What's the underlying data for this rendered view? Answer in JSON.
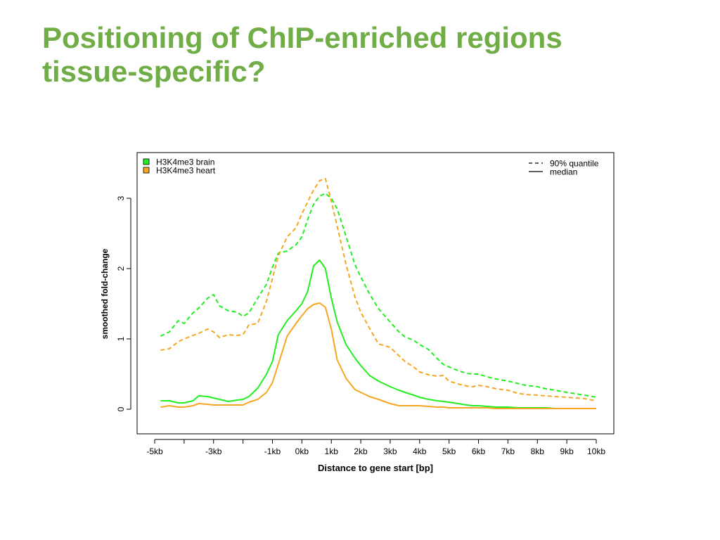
{
  "slide": {
    "title_line1": "Positioning of ChIP-enriched regions",
    "title_line2": "tissue-specific?"
  },
  "chart_data": {
    "type": "line",
    "title": "",
    "xlabel": "Distance to gene start [bp]",
    "ylabel": "smoothed fold-change",
    "xlim": [
      -5,
      10
    ],
    "ylim": [
      -0.35,
      3.65
    ],
    "grid": false,
    "x_ticks": [
      {
        "value": -5,
        "label": "-5kb"
      },
      {
        "value": -4,
        "label": ""
      },
      {
        "value": -3,
        "label": "-3kb"
      },
      {
        "value": -2,
        "label": ""
      },
      {
        "value": -1,
        "label": "-1kb"
      },
      {
        "value": 0,
        "label": "0kb"
      },
      {
        "value": 1,
        "label": "1kb"
      },
      {
        "value": 2,
        "label": "2kb"
      },
      {
        "value": 3,
        "label": "3kb"
      },
      {
        "value": 4,
        "label": "4kb"
      },
      {
        "value": 5,
        "label": "5kb"
      },
      {
        "value": 6,
        "label": "6kb"
      },
      {
        "value": 7,
        "label": "7kb"
      },
      {
        "value": 8,
        "label": "8kb"
      },
      {
        "value": 9,
        "label": "9kb"
      },
      {
        "value": 10,
        "label": "10kb"
      }
    ],
    "y_ticks": [
      {
        "value": 0,
        "label": "0"
      },
      {
        "value": 1,
        "label": "1"
      },
      {
        "value": 2,
        "label": "2"
      },
      {
        "value": 3,
        "label": "3"
      }
    ],
    "legend_series": {
      "position": "top-left",
      "items": [
        {
          "label": "H3K4me3 brain",
          "color": "#22ee22"
        },
        {
          "label": "H3K4me3 heart",
          "color": "#f5a623"
        }
      ]
    },
    "legend_style": {
      "position": "top-right",
      "items": [
        {
          "label": "90% quantile",
          "dash": "dashed"
        },
        {
          "label": "median",
          "dash": "solid"
        }
      ]
    },
    "series": [
      {
        "name": "H3K4me3 brain",
        "stat": "90% quantile",
        "color": "#22ee22",
        "dash": "dashed",
        "x": [
          -4.8,
          -4.5,
          -4.2,
          -4.0,
          -3.7,
          -3.5,
          -3.2,
          -3.0,
          -2.8,
          -2.5,
          -2.2,
          -2.0,
          -1.8,
          -1.5,
          -1.2,
          -1.0,
          -0.8,
          -0.5,
          -0.2,
          0.0,
          0.2,
          0.4,
          0.6,
          0.8,
          1.0,
          1.2,
          1.5,
          1.8,
          2.0,
          2.3,
          2.6,
          3.0,
          3.3,
          3.5,
          3.8,
          4.0,
          4.3,
          4.6,
          4.8,
          5.0,
          5.3,
          5.6,
          5.8,
          6.0,
          6.3,
          6.6,
          7.0,
          7.3,
          7.6,
          8.0,
          8.3,
          8.6,
          9.0,
          9.3,
          9.6,
          10.0
        ],
        "y": [
          1.04,
          1.1,
          1.26,
          1.22,
          1.37,
          1.44,
          1.58,
          1.63,
          1.47,
          1.4,
          1.38,
          1.32,
          1.37,
          1.58,
          1.78,
          2.02,
          2.22,
          2.25,
          2.34,
          2.45,
          2.7,
          2.92,
          3.03,
          3.07,
          3.0,
          2.85,
          2.46,
          2.06,
          1.88,
          1.64,
          1.43,
          1.24,
          1.1,
          1.03,
          0.98,
          0.92,
          0.85,
          0.72,
          0.64,
          0.6,
          0.55,
          0.51,
          0.5,
          0.5,
          0.46,
          0.43,
          0.4,
          0.37,
          0.34,
          0.32,
          0.29,
          0.27,
          0.24,
          0.22,
          0.2,
          0.17
        ]
      },
      {
        "name": "H3K4me3 heart",
        "stat": "90% quantile",
        "color": "#f5a623",
        "dash": "dashed",
        "x": [
          -4.8,
          -4.5,
          -4.2,
          -4.0,
          -3.7,
          -3.5,
          -3.2,
          -3.0,
          -2.8,
          -2.5,
          -2.2,
          -2.0,
          -1.8,
          -1.5,
          -1.2,
          -1.0,
          -0.8,
          -0.5,
          -0.2,
          0.0,
          0.2,
          0.4,
          0.6,
          0.8,
          1.0,
          1.2,
          1.5,
          1.8,
          2.0,
          2.3,
          2.6,
          3.0,
          3.3,
          3.5,
          3.8,
          4.0,
          4.3,
          4.6,
          4.8,
          5.0,
          5.3,
          5.6,
          5.8,
          6.0,
          6.3,
          6.6,
          7.0,
          7.3,
          7.6,
          8.0,
          8.3,
          8.6,
          9.0,
          9.3,
          9.6,
          10.0
        ],
        "y": [
          0.84,
          0.86,
          0.96,
          1.0,
          1.05,
          1.08,
          1.14,
          1.1,
          1.02,
          1.06,
          1.05,
          1.06,
          1.2,
          1.22,
          1.54,
          1.86,
          2.18,
          2.45,
          2.58,
          2.78,
          2.95,
          3.12,
          3.25,
          3.28,
          2.96,
          2.6,
          2.06,
          1.6,
          1.38,
          1.15,
          0.93,
          0.88,
          0.76,
          0.68,
          0.6,
          0.53,
          0.49,
          0.47,
          0.48,
          0.4,
          0.36,
          0.33,
          0.32,
          0.34,
          0.32,
          0.29,
          0.27,
          0.23,
          0.21,
          0.2,
          0.19,
          0.18,
          0.17,
          0.16,
          0.15,
          0.12
        ]
      },
      {
        "name": "H3K4me3 brain",
        "stat": "median",
        "color": "#22ee22",
        "dash": "solid",
        "x": [
          -4.8,
          -4.5,
          -4.2,
          -4.0,
          -3.7,
          -3.5,
          -3.2,
          -3.0,
          -2.8,
          -2.5,
          -2.2,
          -2.0,
          -1.8,
          -1.5,
          -1.2,
          -1.0,
          -0.8,
          -0.5,
          -0.2,
          0.0,
          0.2,
          0.4,
          0.6,
          0.8,
          1.0,
          1.2,
          1.5,
          1.8,
          2.0,
          2.3,
          2.6,
          3.0,
          3.3,
          3.5,
          3.8,
          4.0,
          4.3,
          4.6,
          4.8,
          5.0,
          5.3,
          5.6,
          5.8,
          6.0,
          6.3,
          6.6,
          7.0,
          7.3,
          7.6,
          8.0,
          8.3,
          8.6,
          9.0,
          9.3,
          9.6,
          10.0
        ],
        "y": [
          0.12,
          0.12,
          0.09,
          0.09,
          0.12,
          0.19,
          0.18,
          0.16,
          0.14,
          0.11,
          0.13,
          0.14,
          0.18,
          0.3,
          0.5,
          0.68,
          1.06,
          1.26,
          1.4,
          1.5,
          1.68,
          2.04,
          2.12,
          2.0,
          1.58,
          1.24,
          0.92,
          0.73,
          0.62,
          0.48,
          0.4,
          0.32,
          0.27,
          0.24,
          0.2,
          0.17,
          0.14,
          0.12,
          0.11,
          0.1,
          0.08,
          0.06,
          0.05,
          0.05,
          0.04,
          0.03,
          0.03,
          0.02,
          0.02,
          0.02,
          0.02,
          0.01,
          0.01,
          0.01,
          0.01,
          0.01
        ]
      },
      {
        "name": "H3K4me3 heart",
        "stat": "median",
        "color": "#f5a623",
        "dash": "solid",
        "x": [
          -4.8,
          -4.5,
          -4.2,
          -4.0,
          -3.7,
          -3.5,
          -3.2,
          -3.0,
          -2.8,
          -2.5,
          -2.2,
          -2.0,
          -1.8,
          -1.5,
          -1.2,
          -1.0,
          -0.8,
          -0.5,
          -0.2,
          0.0,
          0.2,
          0.4,
          0.6,
          0.8,
          1.0,
          1.2,
          1.5,
          1.8,
          2.0,
          2.3,
          2.6,
          3.0,
          3.3,
          3.5,
          3.8,
          4.0,
          4.3,
          4.6,
          4.8,
          5.0,
          5.3,
          5.6,
          5.8,
          6.0,
          6.3,
          6.6,
          7.0,
          7.3,
          7.6,
          8.0,
          8.3,
          8.6,
          9.0,
          9.3,
          9.6,
          10.0
        ],
        "y": [
          0.03,
          0.05,
          0.03,
          0.03,
          0.05,
          0.08,
          0.07,
          0.06,
          0.06,
          0.06,
          0.06,
          0.06,
          0.1,
          0.14,
          0.24,
          0.38,
          0.64,
          1.04,
          1.22,
          1.33,
          1.43,
          1.49,
          1.51,
          1.45,
          1.14,
          0.7,
          0.44,
          0.28,
          0.24,
          0.18,
          0.14,
          0.08,
          0.05,
          0.05,
          0.05,
          0.05,
          0.04,
          0.03,
          0.03,
          0.02,
          0.02,
          0.02,
          0.02,
          0.02,
          0.02,
          0.01,
          0.01,
          0.01,
          0.01,
          0.01,
          0.01,
          0.01,
          0.01,
          0.01,
          0.01,
          0.01
        ]
      }
    ]
  }
}
